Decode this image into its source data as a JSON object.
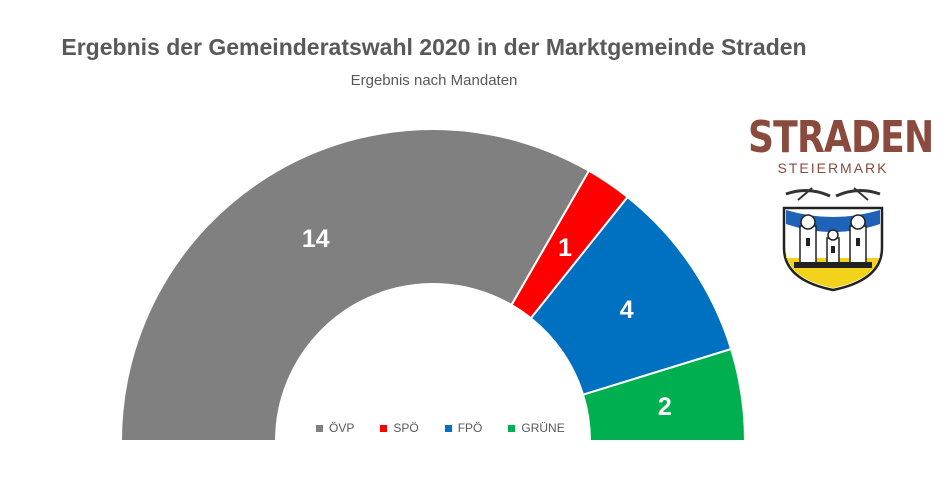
{
  "title": "Ergebnis der Gemeinderatswahl 2020 in der Marktgemeinde Straden",
  "subtitle": "Ergebnis nach Mandaten",
  "logo": {
    "word": "STRADEN",
    "sub": "STEIERMARK"
  },
  "chart_data": {
    "type": "pie",
    "variant": "half-donut",
    "title": "Ergebnis der Gemeinderatswahl 2020 in der Marktgemeinde Straden",
    "subtitle": "Ergebnis nach Mandaten",
    "categories": [
      "ÖVP",
      "SPÖ",
      "FPÖ",
      "GRÜNE"
    ],
    "values": [
      14,
      1,
      4,
      2
    ],
    "labels": [
      "14",
      "1",
      "4",
      "2"
    ],
    "colors": [
      "#808080",
      "#ff0000",
      "#0070c0",
      "#00b050"
    ],
    "legend_placement": "bottom-center"
  }
}
